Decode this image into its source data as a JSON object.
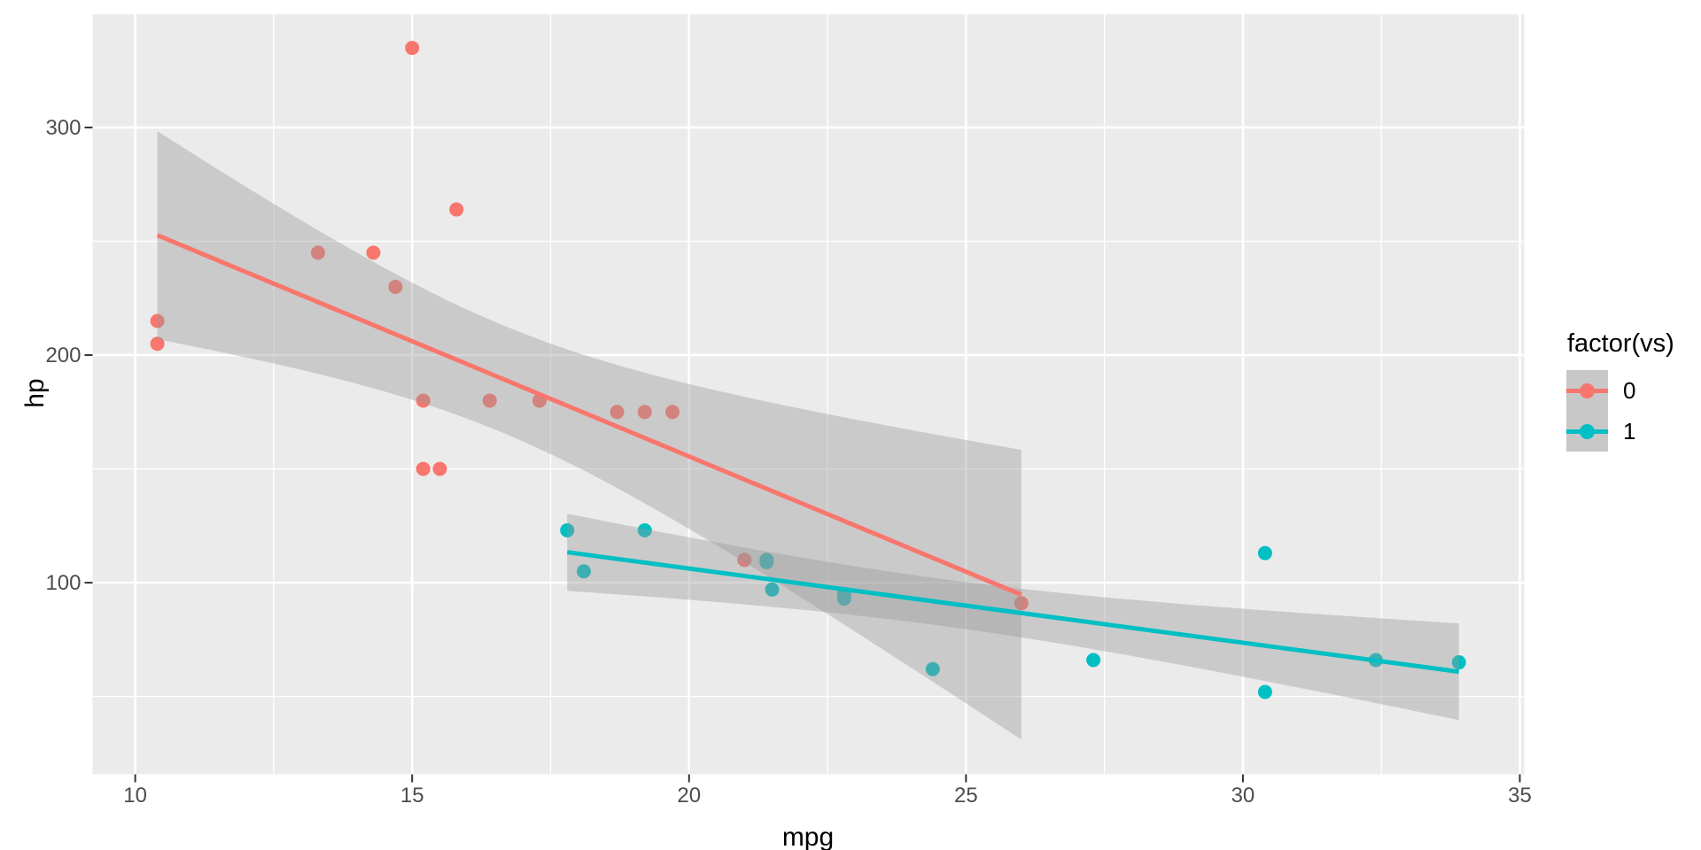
{
  "chart_data": {
    "type": "scatter",
    "title": "",
    "xlabel": "mpg",
    "ylabel": "hp",
    "xlim": [
      9.23,
      35.08
    ],
    "ylim": [
      15.8,
      350.2
    ],
    "x_ticks": [
      10,
      15,
      20,
      25,
      30,
      35
    ],
    "x_minor_ticks": [
      12.5,
      17.5,
      22.5,
      27.5,
      32.5
    ],
    "y_ticks": [
      100,
      200,
      300
    ],
    "y_minor_ticks": [
      50,
      150,
      250,
      350
    ],
    "grid": true,
    "legend": {
      "position": "right",
      "title": "factor(vs)",
      "entries": [
        {
          "label": "0",
          "color": "#F8766D"
        },
        {
          "label": "1",
          "color": "#00BFC4"
        }
      ]
    },
    "series": [
      {
        "name": "0",
        "color": "#F8766D",
        "points": [
          [
            21.0,
            110
          ],
          [
            21.0,
            110
          ],
          [
            18.7,
            175
          ],
          [
            14.3,
            245
          ],
          [
            16.4,
            180
          ],
          [
            17.3,
            180
          ],
          [
            15.2,
            180
          ],
          [
            10.4,
            205
          ],
          [
            10.4,
            215
          ],
          [
            14.7,
            230
          ],
          [
            15.5,
            150
          ],
          [
            15.2,
            150
          ],
          [
            13.3,
            245
          ],
          [
            19.2,
            175
          ],
          [
            15.8,
            264
          ],
          [
            19.7,
            175
          ],
          [
            15.0,
            335
          ],
          [
            26.0,
            91
          ]
        ],
        "smooth": {
          "method": "lm",
          "x_domain": [
            10.4,
            26.0
          ],
          "intercept": 357.98,
          "slope": -10.126,
          "n": 18,
          "x_mean": 16.617,
          "sxx": 253.39,
          "ci_t_times_s": 100.27
        }
      },
      {
        "name": "1",
        "color": "#00BFC4",
        "points": [
          [
            22.8,
            93
          ],
          [
            21.4,
            110
          ],
          [
            18.1,
            105
          ],
          [
            24.4,
            62
          ],
          [
            22.8,
            95
          ],
          [
            19.2,
            123
          ],
          [
            17.8,
            123
          ],
          [
            32.4,
            66
          ],
          [
            30.4,
            52
          ],
          [
            33.9,
            65
          ],
          [
            21.5,
            97
          ],
          [
            27.3,
            66
          ],
          [
            30.4,
            113
          ],
          [
            21.4,
            109
          ]
        ],
        "smooth": {
          "method": "lm",
          "x_domain": [
            17.8,
            33.9
          ],
          "intercept": 171.41,
          "slope": -3.26,
          "n": 14,
          "x_mean": 24.557,
          "sxx": 376.13,
          "ci_t_times_s": 38.56
        }
      }
    ],
    "colors": {
      "panel_bg": "#EBEBEB",
      "grid": "#FFFFFF",
      "ribbon": "#999999",
      "ribbon_opacity": 0.4,
      "axis_text": "#4D4D4D",
      "tick_mark": "#333333",
      "legend_key_bg": "#C8C8C8"
    }
  }
}
